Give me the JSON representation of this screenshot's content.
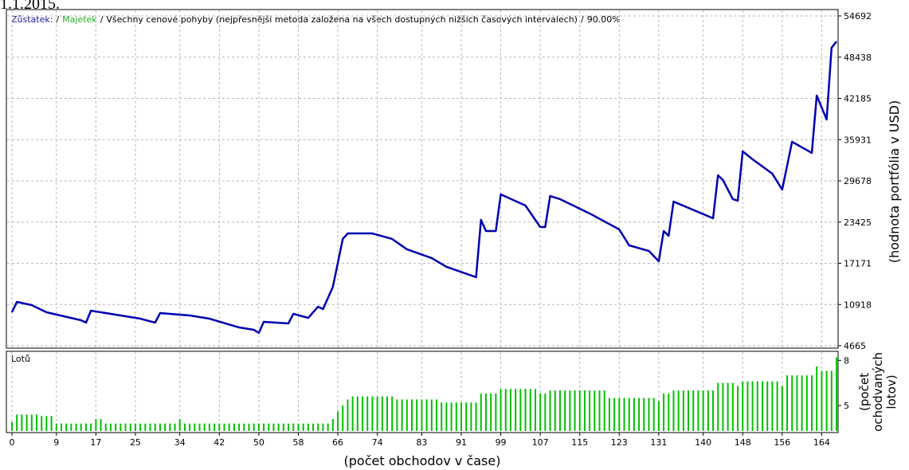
{
  "caption_top": "1.1.2015.",
  "chart_data": [
    {
      "type": "line",
      "legend_items": [
        {
          "text": "Zůstatek:",
          "color": "#1a1aa0"
        },
        {
          "text": "Majetek",
          "color": "#22b022"
        }
      ],
      "separator": "/",
      "description": "Všechny cenové pohyby (nejpřesnější metoda založena na všech dostupných nižších časových intervalech)",
      "quality": "90.00%",
      "y_label": "(hodnota portfólia v USD)",
      "x": [
        0,
        1,
        4,
        7,
        14,
        15,
        16,
        22,
        26,
        29,
        30,
        36,
        40,
        46,
        49,
        50,
        51,
        56,
        57,
        60,
        62,
        63,
        65,
        67,
        68,
        73,
        77,
        80,
        85,
        88,
        94,
        95,
        96,
        98,
        99,
        104,
        107,
        108,
        109,
        111,
        117,
        123,
        125,
        129,
        131,
        132,
        133,
        134,
        142,
        143,
        144,
        146,
        147,
        148,
        150,
        154,
        156,
        158,
        162,
        163,
        165,
        166,
        167
      ],
      "series": [
        {
          "name": "Zůstatek:",
          "color": "#0000b0",
          "values": [
            9740,
            11310,
            10830,
            9740,
            8530,
            8170,
            9980,
            9260,
            8770,
            8170,
            9620,
            9260,
            8770,
            7440,
            7080,
            6600,
            8290,
            8050,
            9500,
            8890,
            10585,
            10220,
            13600,
            20860,
            21700,
            21700,
            20860,
            19290,
            17960,
            16630,
            15060,
            23760,
            22070,
            22070,
            27620,
            25930,
            22670,
            22670,
            27380,
            26900,
            24730,
            22310,
            19890,
            19040,
            17470,
            22070,
            21340,
            26530,
            24000,
            30520,
            29800,
            26900,
            26660,
            34150,
            32940,
            30760,
            28350,
            35600,
            33910,
            42610,
            38980,
            49860,
            50830
          ]
        }
      ],
      "xlim": [
        0,
        167
      ],
      "ylim": [
        4665,
        54692
      ],
      "yticks": [
        4665,
        10918,
        17171,
        23425,
        29678,
        35931,
        42185,
        48438,
        54692
      ],
      "grid": true
    },
    {
      "type": "bar",
      "panel_label": "Lotů",
      "y_label": [
        "(počet",
        "ochodvaných",
        "lotov)"
      ],
      "x_label": "(počet obchodov v čase)",
      "color": "#00c000",
      "values": [
        3.9,
        4.4,
        4.4,
        4.4,
        4.4,
        4.4,
        4.3,
        4.3,
        4.3,
        3.8,
        3.8,
        3.8,
        3.8,
        3.8,
        3.8,
        3.8,
        3.8,
        4.1,
        4.1,
        3.8,
        3.8,
        3.8,
        3.8,
        3.8,
        3.8,
        3.8,
        3.8,
        3.8,
        3.8,
        3.8,
        3.8,
        3.8,
        3.8,
        3.8,
        4.1,
        3.8,
        3.8,
        3.8,
        3.8,
        3.8,
        3.8,
        3.8,
        3.8,
        3.8,
        3.8,
        3.8,
        3.8,
        3.8,
        3.8,
        3.8,
        3.8,
        3.8,
        3.8,
        3.8,
        3.8,
        3.8,
        3.8,
        3.8,
        3.8,
        3.8,
        3.8,
        3.8,
        3.8,
        3.8,
        3.8,
        4.1,
        4.6,
        5.0,
        5.4,
        5.6,
        5.6,
        5.6,
        5.6,
        5.6,
        5.6,
        5.6,
        5.6,
        5.6,
        5.4,
        5.4,
        5.4,
        5.4,
        5.4,
        5.4,
        5.4,
        5.4,
        5.4,
        5.2,
        5.2,
        5.2,
        5.2,
        5.2,
        5.2,
        5.2,
        5.2,
        5.8,
        5.8,
        5.8,
        5.8,
        6.1,
        6.1,
        6.1,
        6.1,
        6.1,
        6.1,
        6.1,
        6.1,
        5.8,
        5.8,
        6.0,
        6.0,
        6.0,
        6.0,
        6.0,
        6.0,
        6.0,
        6.0,
        6.0,
        6.0,
        6.0,
        6.0,
        5.5,
        5.5,
        5.5,
        5.5,
        5.5,
        5.5,
        5.5,
        5.5,
        5.5,
        5.5,
        5.3,
        5.8,
        5.8,
        6.0,
        6.0,
        6.0,
        6.0,
        6.0,
        6.0,
        6.0,
        6.0,
        6.0,
        6.5,
        6.5,
        6.5,
        6.5,
        6.3,
        6.6,
        6.6,
        6.6,
        6.6,
        6.6,
        6.6,
        6.6,
        6.6,
        6.3,
        7.0,
        7.0,
        7.0,
        7.0,
        7.0,
        7.0,
        7.6,
        7.3,
        7.3,
        7.3,
        8.2
      ],
      "xlim": [
        0,
        167
      ],
      "xticks": [
        0,
        9,
        17,
        25,
        34,
        42,
        50,
        58,
        66,
        74,
        83,
        91,
        99,
        107,
        115,
        123,
        131,
        140,
        148,
        156,
        164
      ],
      "ylim": [
        3.2,
        8.6
      ],
      "yticks": [
        5,
        8
      ],
      "grid": true
    }
  ]
}
